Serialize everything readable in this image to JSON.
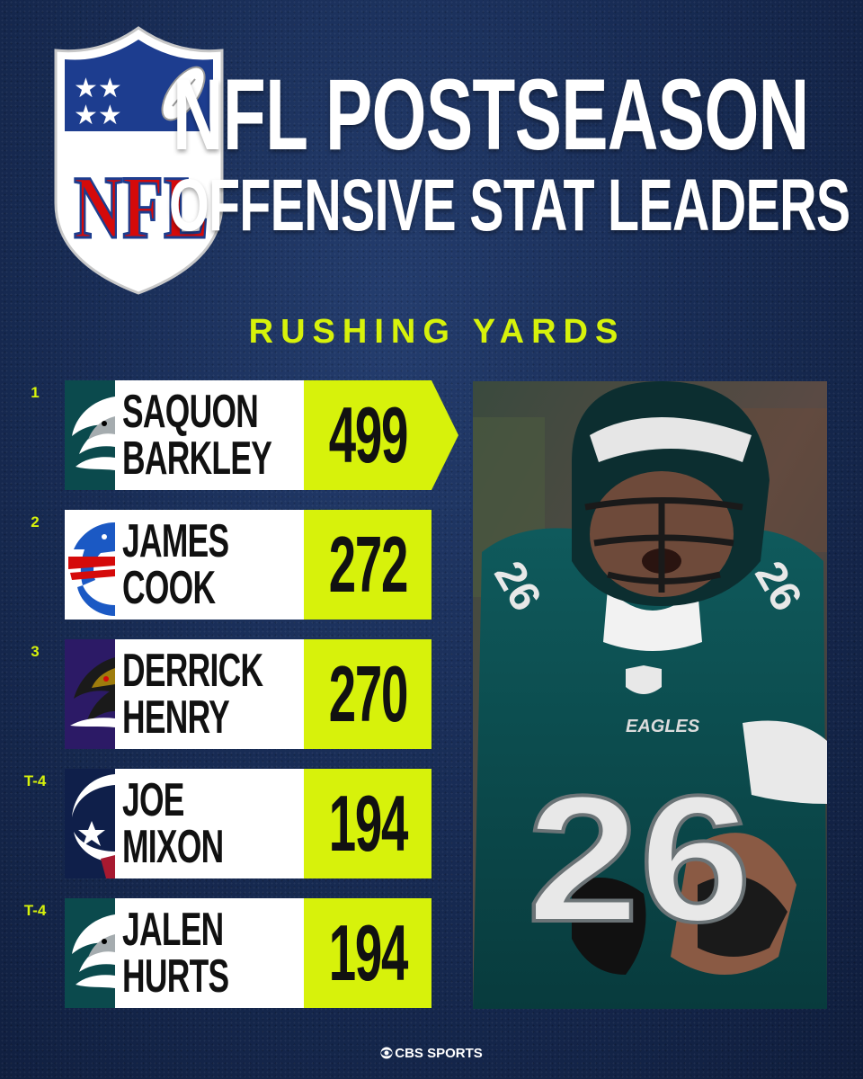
{
  "header": {
    "title_line1": "NFL POSTSEASON",
    "title_line2": "OFFENSIVE STAT LEADERS",
    "logo_text": "NFL"
  },
  "section": {
    "title": "RUSHING YARDS"
  },
  "leaders": [
    {
      "rank": "1",
      "first": "SAQUON",
      "last": "BARKLEY",
      "yards": "499",
      "team_icon": "eagles-logo-icon"
    },
    {
      "rank": "2",
      "first": "JAMES",
      "last": "COOK",
      "yards": "272",
      "team_icon": "bills-logo-icon"
    },
    {
      "rank": "3",
      "first": "DERRICK",
      "last": "HENRY",
      "yards": "270",
      "team_icon": "ravens-logo-icon"
    },
    {
      "rank": "T-4",
      "first": "JOE",
      "last": "MIXON",
      "yards": "194",
      "team_icon": "texans-logo-icon"
    },
    {
      "rank": "T-4",
      "first": "JALEN",
      "last": "HURTS",
      "yards": "194",
      "team_icon": "eagles-logo-icon"
    }
  ],
  "photo": {
    "jersey_number": "26",
    "jersey_text": "EAGLES"
  },
  "footer": {
    "brand": "CBS SPORTS"
  },
  "colors": {
    "background": "#182c55",
    "accent": "#d7f20b",
    "name_panel": "#ffffff",
    "eagles_green": "#0b4a4d",
    "bills_blue": "#1b59c4",
    "ravens_purple": "#2c1a66",
    "texans_navy": "#0f1f4a"
  }
}
